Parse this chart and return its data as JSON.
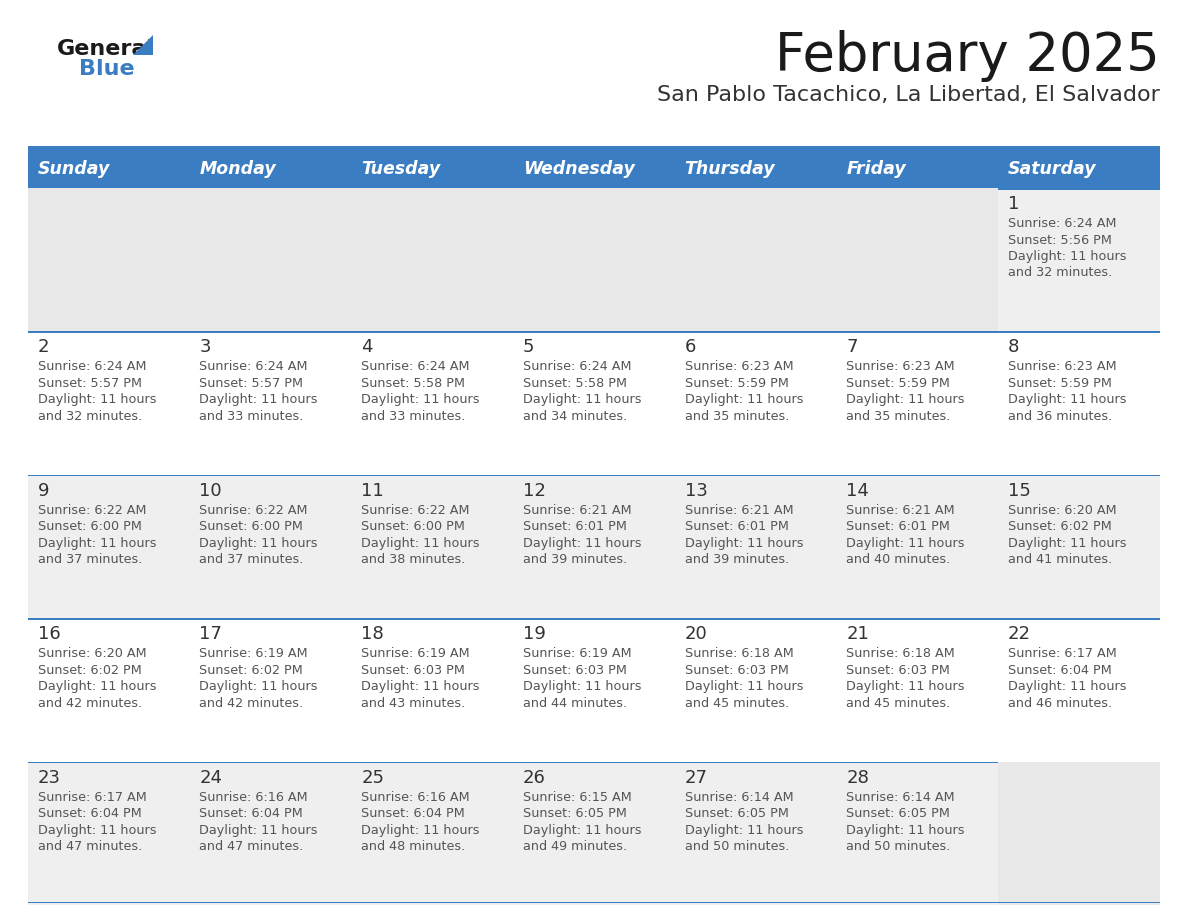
{
  "title": "February 2025",
  "subtitle": "San Pablo Tacachico, La Libertad, El Salvador",
  "days_of_week": [
    "Sunday",
    "Monday",
    "Tuesday",
    "Wednesday",
    "Thursday",
    "Friday",
    "Saturday"
  ],
  "header_bg": "#3A7DC2",
  "header_text": "#FFFFFF",
  "row_bg_odd": "#EFEFEF",
  "row_bg_even": "#FFFFFF",
  "separator_color": "#3A7DC2",
  "text_color": "#555555",
  "day_number_color": "#333333",
  "title_color": "#1A1A1A",
  "subtitle_color": "#333333",
  "logo_general_color": "#1A1A1A",
  "logo_blue_color": "#3A7DC2",
  "logo_triangle_color": "#3A7DC2",
  "calendar_data": [
    [
      {
        "day": "",
        "sunrise": "",
        "sunset": "",
        "daylight": ""
      },
      {
        "day": "",
        "sunrise": "",
        "sunset": "",
        "daylight": ""
      },
      {
        "day": "",
        "sunrise": "",
        "sunset": "",
        "daylight": ""
      },
      {
        "day": "",
        "sunrise": "",
        "sunset": "",
        "daylight": ""
      },
      {
        "day": "",
        "sunrise": "",
        "sunset": "",
        "daylight": ""
      },
      {
        "day": "",
        "sunrise": "",
        "sunset": "",
        "daylight": ""
      },
      {
        "day": "1",
        "sunrise": "6:24 AM",
        "sunset": "5:56 PM",
        "daylight": "11 hours and 32 minutes."
      }
    ],
    [
      {
        "day": "2",
        "sunrise": "6:24 AM",
        "sunset": "5:57 PM",
        "daylight": "11 hours and 32 minutes."
      },
      {
        "day": "3",
        "sunrise": "6:24 AM",
        "sunset": "5:57 PM",
        "daylight": "11 hours and 33 minutes."
      },
      {
        "day": "4",
        "sunrise": "6:24 AM",
        "sunset": "5:58 PM",
        "daylight": "11 hours and 33 minutes."
      },
      {
        "day": "5",
        "sunrise": "6:24 AM",
        "sunset": "5:58 PM",
        "daylight": "11 hours and 34 minutes."
      },
      {
        "day": "6",
        "sunrise": "6:23 AM",
        "sunset": "5:59 PM",
        "daylight": "11 hours and 35 minutes."
      },
      {
        "day": "7",
        "sunrise": "6:23 AM",
        "sunset": "5:59 PM",
        "daylight": "11 hours and 35 minutes."
      },
      {
        "day": "8",
        "sunrise": "6:23 AM",
        "sunset": "5:59 PM",
        "daylight": "11 hours and 36 minutes."
      }
    ],
    [
      {
        "day": "9",
        "sunrise": "6:22 AM",
        "sunset": "6:00 PM",
        "daylight": "11 hours and 37 minutes."
      },
      {
        "day": "10",
        "sunrise": "6:22 AM",
        "sunset": "6:00 PM",
        "daylight": "11 hours and 37 minutes."
      },
      {
        "day": "11",
        "sunrise": "6:22 AM",
        "sunset": "6:00 PM",
        "daylight": "11 hours and 38 minutes."
      },
      {
        "day": "12",
        "sunrise": "6:21 AM",
        "sunset": "6:01 PM",
        "daylight": "11 hours and 39 minutes."
      },
      {
        "day": "13",
        "sunrise": "6:21 AM",
        "sunset": "6:01 PM",
        "daylight": "11 hours and 39 minutes."
      },
      {
        "day": "14",
        "sunrise": "6:21 AM",
        "sunset": "6:01 PM",
        "daylight": "11 hours and 40 minutes."
      },
      {
        "day": "15",
        "sunrise": "6:20 AM",
        "sunset": "6:02 PM",
        "daylight": "11 hours and 41 minutes."
      }
    ],
    [
      {
        "day": "16",
        "sunrise": "6:20 AM",
        "sunset": "6:02 PM",
        "daylight": "11 hours and 42 minutes."
      },
      {
        "day": "17",
        "sunrise": "6:19 AM",
        "sunset": "6:02 PM",
        "daylight": "11 hours and 42 minutes."
      },
      {
        "day": "18",
        "sunrise": "6:19 AM",
        "sunset": "6:03 PM",
        "daylight": "11 hours and 43 minutes."
      },
      {
        "day": "19",
        "sunrise": "6:19 AM",
        "sunset": "6:03 PM",
        "daylight": "11 hours and 44 minutes."
      },
      {
        "day": "20",
        "sunrise": "6:18 AM",
        "sunset": "6:03 PM",
        "daylight": "11 hours and 45 minutes."
      },
      {
        "day": "21",
        "sunrise": "6:18 AM",
        "sunset": "6:03 PM",
        "daylight": "11 hours and 45 minutes."
      },
      {
        "day": "22",
        "sunrise": "6:17 AM",
        "sunset": "6:04 PM",
        "daylight": "11 hours and 46 minutes."
      }
    ],
    [
      {
        "day": "23",
        "sunrise": "6:17 AM",
        "sunset": "6:04 PM",
        "daylight": "11 hours and 47 minutes."
      },
      {
        "day": "24",
        "sunrise": "6:16 AM",
        "sunset": "6:04 PM",
        "daylight": "11 hours and 47 minutes."
      },
      {
        "day": "25",
        "sunrise": "6:16 AM",
        "sunset": "6:04 PM",
        "daylight": "11 hours and 48 minutes."
      },
      {
        "day": "26",
        "sunrise": "6:15 AM",
        "sunset": "6:05 PM",
        "daylight": "11 hours and 49 minutes."
      },
      {
        "day": "27",
        "sunrise": "6:14 AM",
        "sunset": "6:05 PM",
        "daylight": "11 hours and 50 minutes."
      },
      {
        "day": "28",
        "sunrise": "6:14 AM",
        "sunset": "6:05 PM",
        "daylight": "11 hours and 50 minutes."
      },
      {
        "day": "",
        "sunrise": "",
        "sunset": "",
        "daylight": ""
      }
    ]
  ]
}
